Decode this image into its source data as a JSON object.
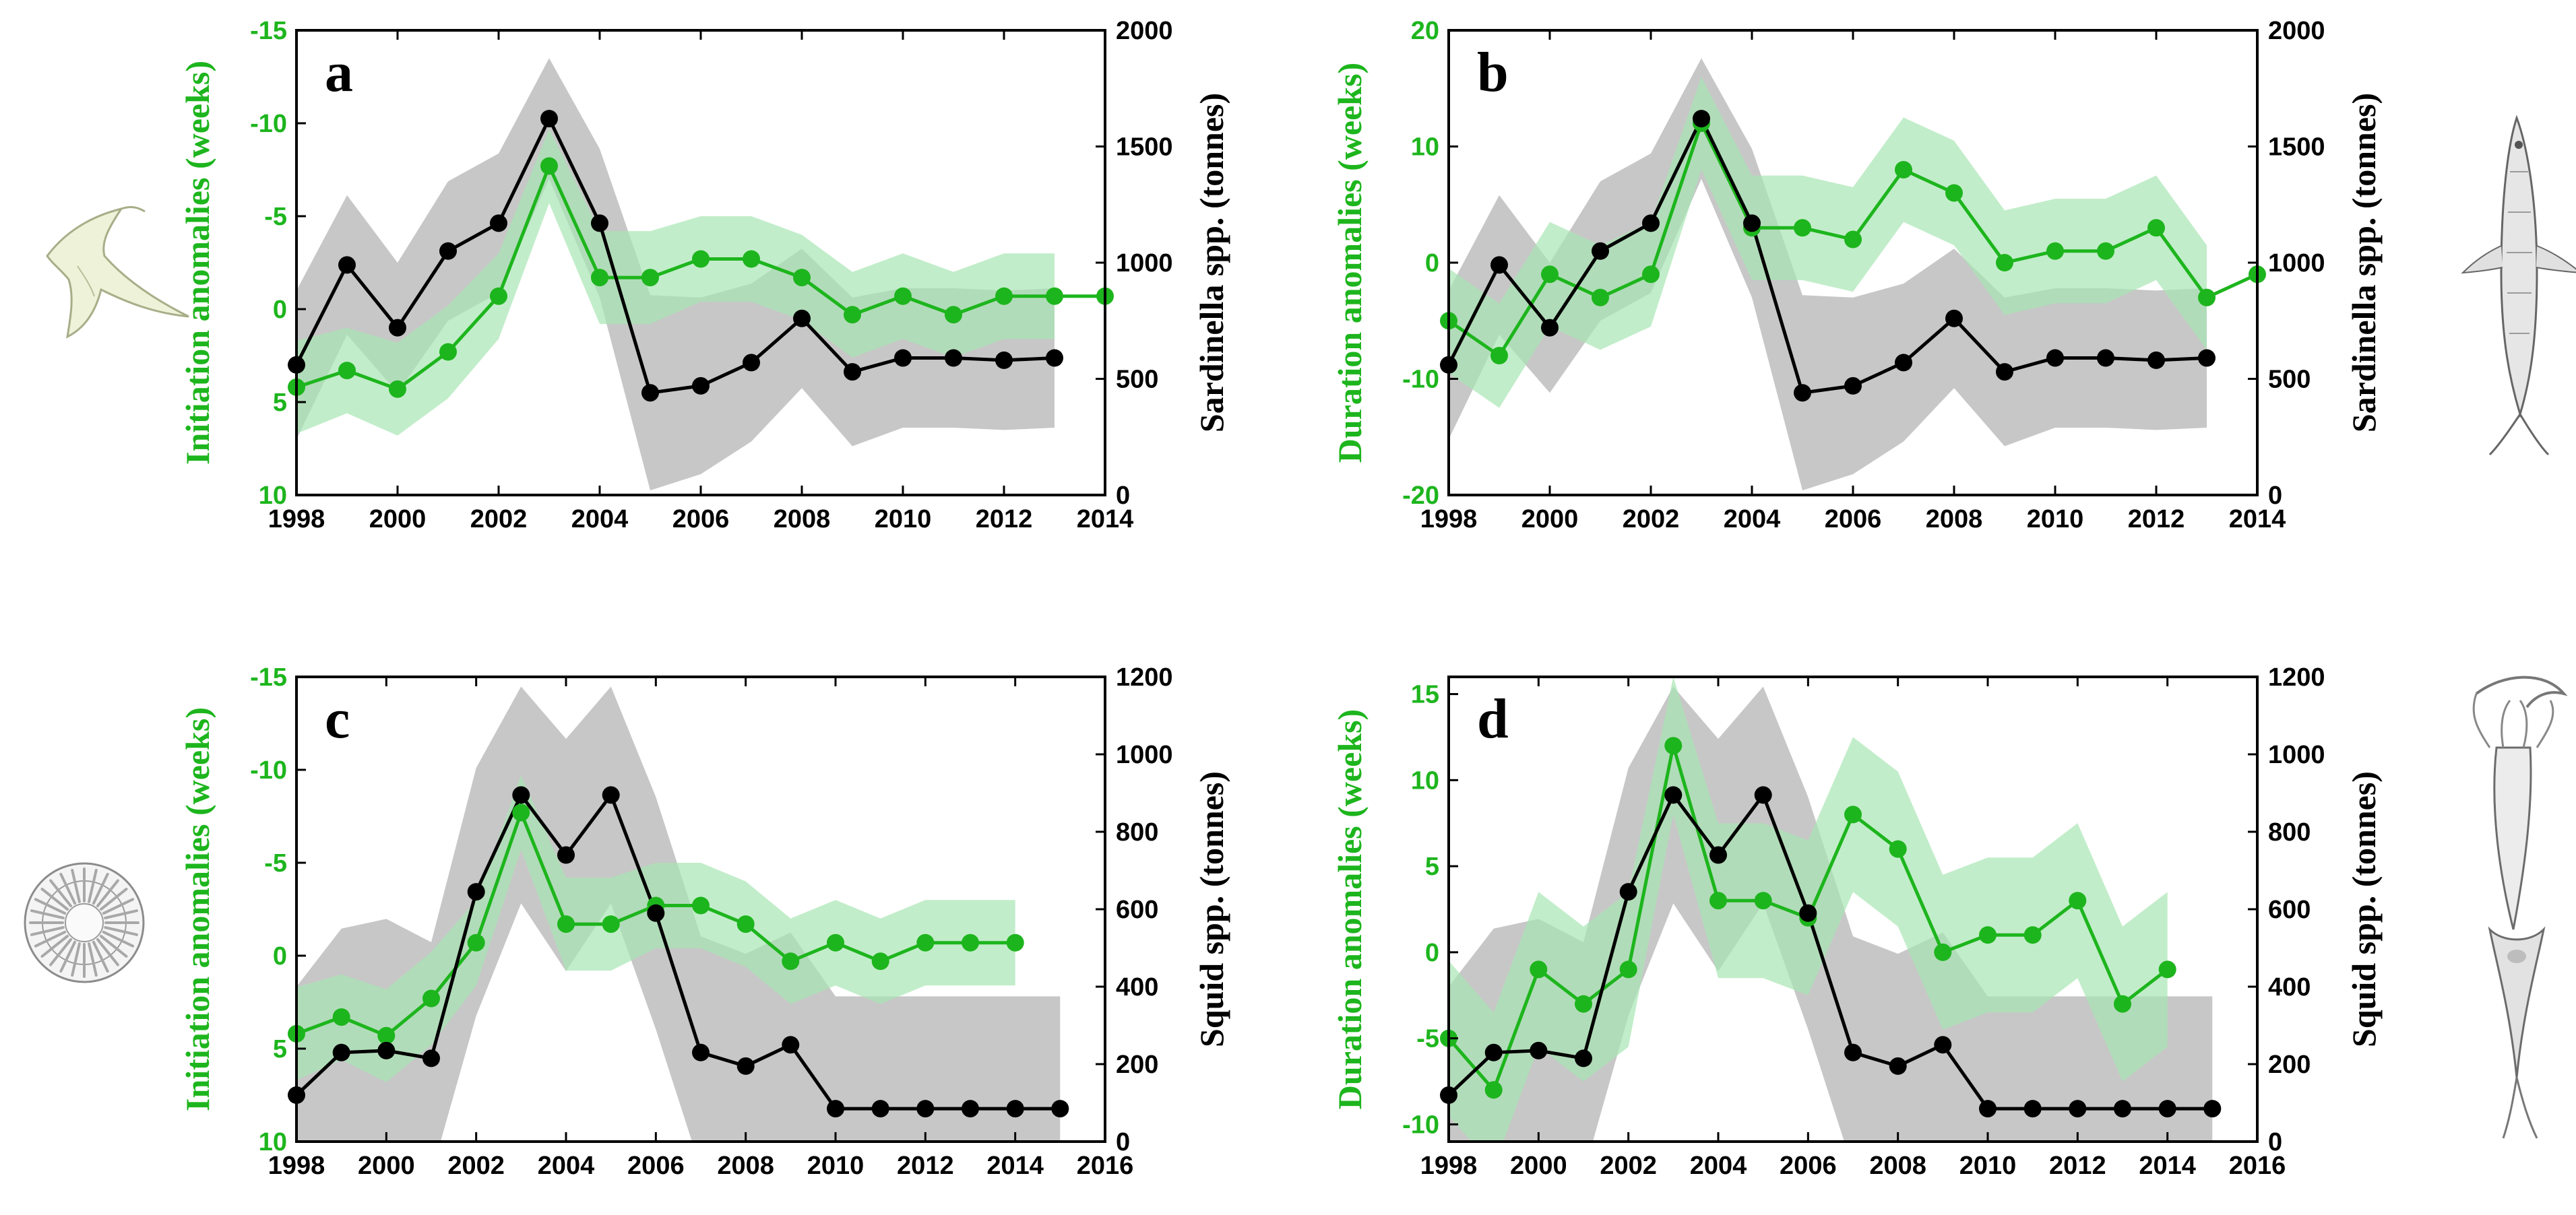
{
  "colors": {
    "green": "#1db51d",
    "green_band": "#a8e6b4",
    "black": "#000000",
    "gray_band": "#bdbdbd"
  },
  "illustrations": {
    "panel_a": "dinoflagellate-icon",
    "panel_b": "sardine-fish-icon",
    "panel_c": "diatom-icon",
    "panel_d": "squid-icon"
  },
  "chart_data": [
    {
      "panel": "a",
      "type": "line",
      "left_axis": {
        "label": "Initiation anomalies (weeks)",
        "range": [
          10,
          -15
        ],
        "ticks": [
          -15,
          -10,
          -5,
          0,
          5,
          10
        ],
        "tick_labels": [
          "-15",
          "-10",
          "-5",
          "0",
          "5",
          "10"
        ]
      },
      "right_axis": {
        "label": "Sardinella spp. (tonnes)",
        "range": [
          0,
          2000
        ],
        "ticks": [
          0,
          500,
          1000,
          1500,
          2000
        ],
        "tick_labels": [
          "0",
          "500",
          "1000",
          "1500",
          "2000"
        ]
      },
      "x_axis": {
        "range": [
          1998,
          2014
        ],
        "ticks": [
          1998,
          2000,
          2002,
          2004,
          2006,
          2008,
          2010,
          2012,
          2014
        ],
        "tick_labels": [
          "1998",
          "2000",
          "2002",
          "2004",
          "2006",
          "2008",
          "2010",
          "2012",
          "2014"
        ]
      },
      "series": [
        {
          "name": "green",
          "axis": "left",
          "x": [
            1998,
            1999,
            2000,
            2001,
            2002,
            2003,
            2004,
            2005,
            2006,
            2007,
            2008,
            2009,
            2010,
            2011,
            2012,
            2013,
            2014
          ],
          "values": [
            4.2,
            3.3,
            4.3,
            2.3,
            -0.7,
            -7.7,
            -1.7,
            -1.7,
            -2.7,
            -2.7,
            -1.7,
            0.3,
            -0.7,
            0.3,
            -0.7,
            -0.7,
            -0.7
          ],
          "band": [
            2.5,
            2.3,
            2.5,
            2.5,
            2.3,
            2.0,
            2.5,
            2.5,
            2.3,
            2.3,
            2.3,
            2.3,
            2.3,
            2.3,
            2.3,
            2.3,
            null
          ]
        },
        {
          "name": "black",
          "axis": "right",
          "x": [
            1998,
            1999,
            2000,
            2001,
            2002,
            2003,
            2004,
            2005,
            2006,
            2007,
            2008,
            2009,
            2010,
            2011,
            2012,
            2013
          ],
          "values": [
            560,
            990,
            720,
            1050,
            1170,
            1620,
            1170,
            440,
            470,
            570,
            760,
            530,
            590,
            590,
            580,
            590
          ],
          "band": [
            320,
            300,
            280,
            300,
            300,
            260,
            320,
            420,
            380,
            340,
            300,
            320,
            300,
            300,
            300,
            300
          ]
        }
      ]
    },
    {
      "panel": "b",
      "type": "line",
      "left_axis": {
        "label": "Duration anomalies (weeks)",
        "range": [
          -20,
          20
        ],
        "ticks": [
          -20,
          -10,
          0,
          10,
          20
        ],
        "tick_labels": [
          "-20",
          "-10",
          "0",
          "10",
          "20"
        ]
      },
      "right_axis": {
        "label": "Sardinella spp. (tonnes)",
        "range": [
          0,
          2000
        ],
        "ticks": [
          0,
          500,
          1000,
          1500,
          2000
        ],
        "tick_labels": [
          "0",
          "500",
          "1000",
          "1500",
          "2000"
        ]
      },
      "x_axis": {
        "range": [
          1998,
          2014
        ],
        "ticks": [
          1998,
          2000,
          2002,
          2004,
          2006,
          2008,
          2010,
          2012,
          2014
        ],
        "tick_labels": [
          "1998",
          "2000",
          "2002",
          "2004",
          "2006",
          "2008",
          "2010",
          "2012",
          "2014"
        ]
      },
      "series": [
        {
          "name": "green",
          "axis": "left",
          "x": [
            1998,
            1999,
            2000,
            2001,
            2002,
            2003,
            2004,
            2005,
            2006,
            2007,
            2008,
            2009,
            2010,
            2011,
            2012,
            2013,
            2014
          ],
          "values": [
            -5,
            -8,
            -1,
            -3,
            -1,
            12,
            3,
            3,
            2,
            8,
            6,
            0,
            1,
            1,
            3,
            -3,
            -1
          ],
          "band": [
            4.5,
            4.5,
            4.5,
            4.5,
            4.5,
            4.0,
            4.5,
            4.5,
            4.5,
            4.5,
            4.5,
            4.5,
            4.5,
            4.5,
            4.5,
            4.5,
            null
          ]
        },
        {
          "name": "black",
          "axis": "right",
          "x": [
            1998,
            1999,
            2000,
            2001,
            2002,
            2003,
            2004,
            2005,
            2006,
            2007,
            2008,
            2009,
            2010,
            2011,
            2012,
            2013
          ],
          "values": [
            560,
            990,
            720,
            1050,
            1170,
            1620,
            1170,
            440,
            470,
            570,
            760,
            530,
            590,
            590,
            580,
            590
          ],
          "band": [
            320,
            300,
            280,
            300,
            300,
            260,
            320,
            420,
            380,
            340,
            300,
            320,
            300,
            300,
            300,
            300
          ]
        }
      ]
    },
    {
      "panel": "c",
      "type": "line",
      "left_axis": {
        "label": "Initiation anomalies (weeks)",
        "range": [
          10,
          -15
        ],
        "ticks": [
          -15,
          -10,
          -5,
          0,
          5,
          10
        ],
        "tick_labels": [
          "-15",
          "-10",
          "-5",
          "0",
          "5",
          "10"
        ]
      },
      "right_axis": {
        "label": "Squid spp. (tonnes)",
        "range": [
          0,
          1200
        ],
        "ticks": [
          0,
          200,
          400,
          600,
          800,
          1000,
          1200
        ],
        "tick_labels": [
          "0",
          "200",
          "400",
          "600",
          "800",
          "1000",
          "1200"
        ]
      },
      "x_axis": {
        "range": [
          1998,
          2016
        ],
        "ticks": [
          1998,
          2000,
          2002,
          2004,
          2006,
          2008,
          2010,
          2012,
          2014,
          2016
        ],
        "tick_labels": [
          "1998",
          "2000",
          "2002",
          "2004",
          "2006",
          "2008",
          "2010",
          "2012",
          "2014",
          "2016"
        ]
      },
      "series": [
        {
          "name": "green",
          "axis": "left",
          "x": [
            1998,
            1999,
            2000,
            2001,
            2002,
            2003,
            2004,
            2005,
            2006,
            2007,
            2008,
            2009,
            2010,
            2011,
            2012,
            2013,
            2014
          ],
          "values": [
            4.2,
            3.3,
            4.3,
            2.3,
            -0.7,
            -7.7,
            -1.7,
            -1.7,
            -2.7,
            -2.7,
            -1.7,
            0.3,
            -0.7,
            0.3,
            -0.7,
            -0.7,
            -0.7
          ],
          "band": [
            2.5,
            2.3,
            2.5,
            2.5,
            2.3,
            2.0,
            2.5,
            2.5,
            2.3,
            2.3,
            2.3,
            2.3,
            2.3,
            2.3,
            2.3,
            2.3,
            2.3
          ]
        },
        {
          "name": "black",
          "axis": "right",
          "x": [
            1998,
            1999,
            2000,
            2001,
            2002,
            2003,
            2004,
            2005,
            2006,
            2007,
            2008,
            2009,
            2010,
            2011,
            2012,
            2013,
            2014,
            2015
          ],
          "values": [
            120,
            230,
            235,
            215,
            645,
            895,
            740,
            895,
            590,
            230,
            195,
            250,
            85,
            85,
            85,
            85,
            85,
            85
          ],
          "band": [
            280,
            320,
            340,
            300,
            320,
            280,
            300,
            280,
            300,
            300,
            290,
            290,
            290,
            290,
            290,
            290,
            290,
            290
          ]
        }
      ]
    },
    {
      "panel": "d",
      "type": "line",
      "left_axis": {
        "label": "Duration anomalies (weeks)",
        "range": [
          -11,
          16
        ],
        "ticks": [
          -10,
          -5,
          0,
          5,
          10,
          15
        ],
        "tick_labels": [
          "-10",
          "-5",
          "0",
          "5",
          "10",
          "15"
        ]
      },
      "right_axis": {
        "label": "Squid spp. (tonnes)",
        "range": [
          0,
          1200
        ],
        "ticks": [
          0,
          200,
          400,
          600,
          800,
          1000,
          1200
        ],
        "tick_labels": [
          "0",
          "200",
          "400",
          "600",
          "800",
          "1000",
          "1200"
        ]
      },
      "x_axis": {
        "range": [
          1998,
          2016
        ],
        "ticks": [
          1998,
          2000,
          2002,
          2004,
          2006,
          2008,
          2010,
          2012,
          2014,
          2016
        ],
        "tick_labels": [
          "1998",
          "2000",
          "2002",
          "2004",
          "2006",
          "2008",
          "2010",
          "2012",
          "2014",
          "2016"
        ]
      },
      "series": [
        {
          "name": "green",
          "axis": "left",
          "x": [
            1998,
            1999,
            2000,
            2001,
            2002,
            2003,
            2004,
            2005,
            2006,
            2007,
            2008,
            2009,
            2010,
            2011,
            2012,
            2013,
            2014
          ],
          "values": [
            -5,
            -8,
            -1,
            -3,
            -1,
            12,
            3,
            3,
            2,
            8,
            6,
            0,
            1,
            1,
            3,
            -3,
            -1
          ],
          "band": [
            4.5,
            4.5,
            4.5,
            4.5,
            4.5,
            4.0,
            4.5,
            4.5,
            4.5,
            4.5,
            4.5,
            4.5,
            4.5,
            4.5,
            4.5,
            4.5,
            4.5
          ]
        },
        {
          "name": "black",
          "axis": "right",
          "x": [
            1998,
            1999,
            2000,
            2001,
            2002,
            2003,
            2004,
            2005,
            2006,
            2007,
            2008,
            2009,
            2010,
            2011,
            2012,
            2013,
            2014,
            2015
          ],
          "values": [
            120,
            230,
            235,
            215,
            645,
            895,
            740,
            895,
            590,
            230,
            195,
            250,
            85,
            85,
            85,
            85,
            85,
            85
          ],
          "band": [
            280,
            320,
            340,
            300,
            320,
            280,
            300,
            280,
            300,
            300,
            290,
            290,
            290,
            290,
            290,
            290,
            290,
            290
          ]
        }
      ]
    }
  ]
}
